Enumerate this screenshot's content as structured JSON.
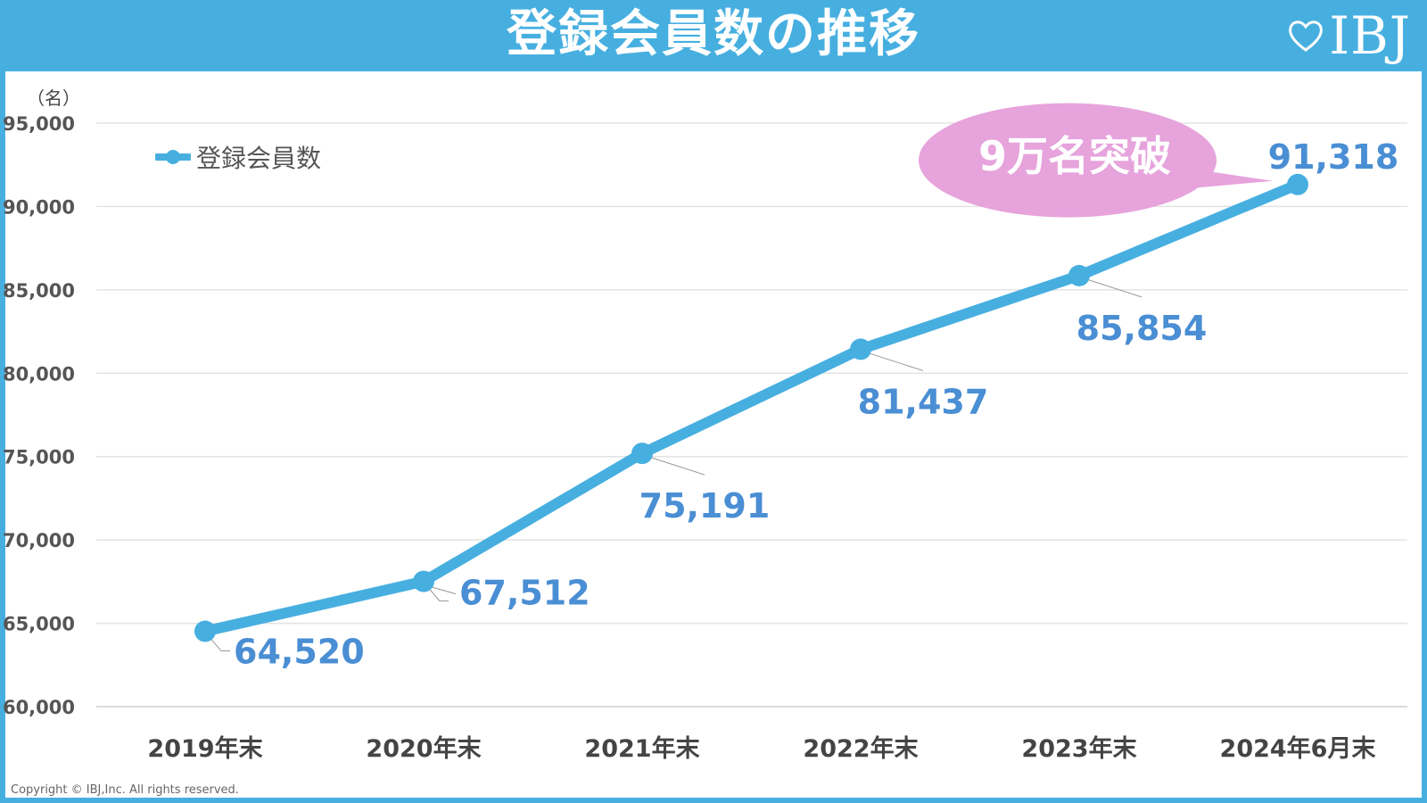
{
  "header": {
    "title": "登録会員数の推移",
    "logo_text": "IBJ"
  },
  "copyright": "Copyright © IBJ,Inc. All rights reserved.",
  "chart_data": {
    "type": "line",
    "ylabel": "（名）",
    "ylim": [
      60000,
      95000
    ],
    "yticks": [
      {
        "value": 95000,
        "label": "95,000"
      },
      {
        "value": 90000,
        "label": "90,000"
      },
      {
        "value": 85000,
        "label": "85,000"
      },
      {
        "value": 80000,
        "label": "80,000"
      },
      {
        "value": 75000,
        "label": "75,000"
      },
      {
        "value": 70000,
        "label": "70,000"
      },
      {
        "value": 65000,
        "label": "65,000"
      },
      {
        "value": 60000,
        "label": "60,000"
      }
    ],
    "categories": [
      "2019年末",
      "2020年末",
      "2021年末",
      "2022年末",
      "2023年末",
      "2024年6月末"
    ],
    "series": [
      {
        "name": "登録会員数",
        "values": [
          64520,
          67512,
          75191,
          81437,
          85854,
          91318
        ],
        "labels": [
          "64,520",
          "67,512",
          "75,191",
          "81,437",
          "85,854",
          "91,318"
        ]
      }
    ],
    "grid": true,
    "legend_position": "top-left",
    "annotation": "9万名突破",
    "colors": {
      "line": "#47afe0",
      "data_label": "#4a8ed4",
      "callout": "#e6a3dc",
      "header": "#47afe0"
    }
  }
}
